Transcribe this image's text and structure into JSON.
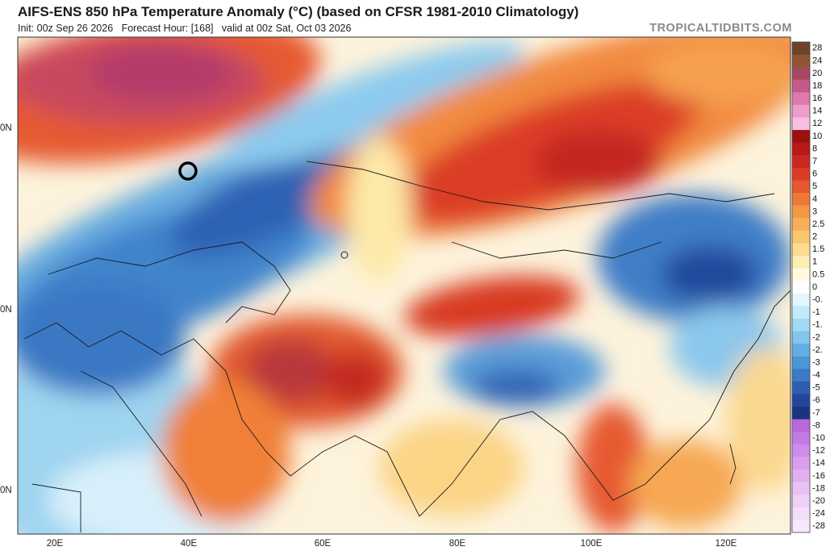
{
  "header": {
    "title": "AIFS-ENS 850 hPa Temperature Anomaly (°C) (based on CFSR 1981-2010 Climatology)",
    "subtitle": "Init: 00z Sep 26 2026   Forecast Hour: [168]   valid at 00z Sat, Oct 03 2026",
    "credit": "TROPICALTIDBITS.COM"
  },
  "map": {
    "lon_labels": [
      "20E",
      "40E",
      "60E",
      "80E",
      "100E",
      "120E"
    ],
    "lat_labels": [
      "0N",
      "0N",
      "0N"
    ]
  },
  "colorbar": {
    "levels": [
      {
        "label": "28",
        "color": "#6e4228"
      },
      {
        "label": "24",
        "color": "#8e5434"
      },
      {
        "label": "20",
        "color": "#a84860"
      },
      {
        "label": "18",
        "color": "#c45a88"
      },
      {
        "label": "16",
        "color": "#dc7aac"
      },
      {
        "label": "14",
        "color": "#ee9ccc"
      },
      {
        "label": "12",
        "color": "#f7bfe0"
      },
      {
        "label": "10",
        "color": "#9c1010"
      },
      {
        "label": "8",
        "color": "#b81818"
      },
      {
        "label": "7",
        "color": "#cc2620"
      },
      {
        "label": "6",
        "color": "#dc3a26"
      },
      {
        "label": "5",
        "color": "#e6582e"
      },
      {
        "label": "4",
        "color": "#ef7836"
      },
      {
        "label": "3",
        "color": "#f49646"
      },
      {
        "label": "2.5",
        "color": "#f7ae58"
      },
      {
        "label": "2",
        "color": "#f9c670"
      },
      {
        "label": "1.5",
        "color": "#fbdc90"
      },
      {
        "label": "1",
        "color": "#fdeeb4"
      },
      {
        "label": "0.5",
        "color": "#fffae0"
      },
      {
        "label": "0",
        "color": "#ffffff"
      },
      {
        "label": "-0.",
        "color": "#e2f6fe"
      },
      {
        "label": "-1",
        "color": "#c2eafa"
      },
      {
        "label": "-1.",
        "color": "#a2daf4"
      },
      {
        "label": "-2",
        "color": "#82c6ec"
      },
      {
        "label": "-2.",
        "color": "#62aee2"
      },
      {
        "label": "-3",
        "color": "#4a96d6"
      },
      {
        "label": "-4",
        "color": "#3a7ac6"
      },
      {
        "label": "-5",
        "color": "#2e5eb2"
      },
      {
        "label": "-6",
        "color": "#24469a"
      },
      {
        "label": "-7",
        "color": "#1a3480"
      },
      {
        "label": "-8",
        "color": "#b868dc"
      },
      {
        "label": "-10",
        "color": "#c47ae4"
      },
      {
        "label": "-12",
        "color": "#d08cea"
      },
      {
        "label": "-14",
        "color": "#da9eee"
      },
      {
        "label": "-16",
        "color": "#e2b0f2"
      },
      {
        "label": "-18",
        "color": "#e9c2f5"
      },
      {
        "label": "-20",
        "color": "#efd0f8"
      },
      {
        "label": "-24",
        "color": "#f4defa"
      },
      {
        "label": "-28",
        "color": "#f8e8fc"
      }
    ]
  }
}
